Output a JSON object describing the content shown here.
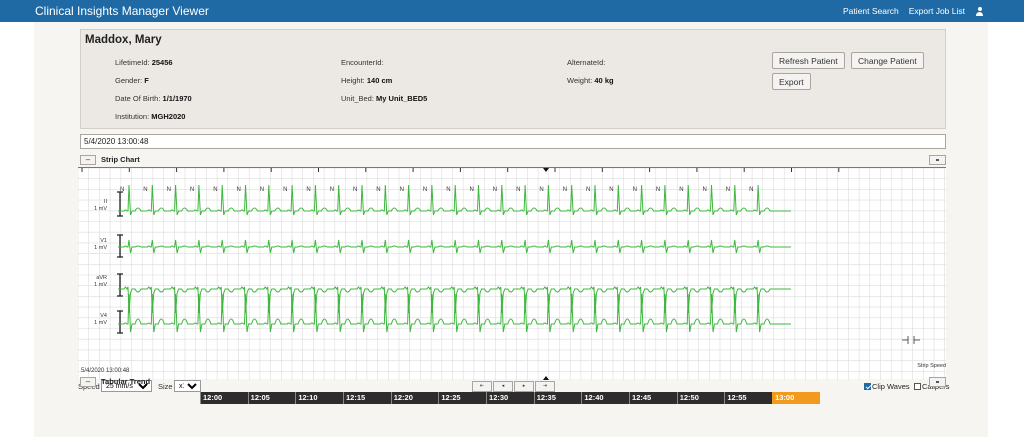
{
  "app": {
    "title": "Clinical Insights Manager Viewer",
    "nav": {
      "patient_search": "Patient Search",
      "export_job_list": "Export Job List"
    },
    "accent_color": "#1f6aa5"
  },
  "patient": {
    "name": "Maddox, Mary",
    "fields": [
      {
        "label": "LifetimeId:",
        "value": "25456"
      },
      {
        "label": "Gender:",
        "value": "F"
      },
      {
        "label": "Date Of Birth:",
        "value": "1/1/1970"
      },
      {
        "label": "Institution:",
        "value": "MGH2020"
      },
      {
        "label": "EncounterId:",
        "value": ""
      },
      {
        "label": "Height:",
        "value": "140 cm"
      },
      {
        "label": "Unit_Bed:",
        "value": "My Unit_BED5"
      },
      {
        "label": "AlternateId:",
        "value": ""
      },
      {
        "label": "Weight:",
        "value": "40 kg"
      }
    ],
    "buttons": {
      "refresh": "Refresh Patient",
      "change": "Change Patient",
      "export": "Export"
    }
  },
  "datetime_value": "5/4/2020 13:00:48",
  "strip_chart": {
    "collapse_label": "–",
    "title": "Strip Chart",
    "beat_label": "N",
    "leads": [
      {
        "name": "II",
        "scale": "1 mV"
      },
      {
        "name": "V1",
        "scale": "1 mV"
      },
      {
        "name": "aVR",
        "scale": "1 mV"
      },
      {
        "name": "V4",
        "scale": "1 mV"
      }
    ],
    "strip_speed_label": "Strip Speed",
    "timestamp": "5/4/2020 13:00:48",
    "waveform_color": "#3db83d"
  },
  "controls": {
    "speed_label": "Speed",
    "speed_value": "25 mm/s",
    "size_label": "Size",
    "size_value": "x1",
    "nav_buttons": [
      "⇤",
      "◂",
      "▸",
      "⇥"
    ],
    "clip_waves_label": "Clip Waves",
    "clip_waves_checked": true,
    "calipers_label": "Calipers",
    "calipers_checked": false
  },
  "tabular_trend": {
    "collapse_label": "–",
    "title": "Tabular Trend",
    "times": [
      "12:00",
      "12:05",
      "12:10",
      "12:15",
      "12:20",
      "12:25",
      "12:30",
      "12:35",
      "12:40",
      "12:45",
      "12:50",
      "12:55",
      "13:00"
    ],
    "active_index": 12,
    "active_color": "#f29a1f"
  }
}
